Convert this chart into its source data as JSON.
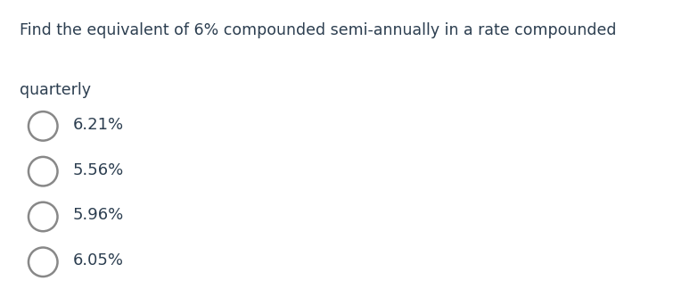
{
  "question_line1": "Find the equivalent of 6% compounded semi-annually in a rate compounded",
  "question_line2": "quarterly",
  "options": [
    "6.21%",
    "5.56%",
    "5.96%",
    "6.05%"
  ],
  "question_color": "#2c3e50",
  "option_color": "#2c3e50",
  "background_color": "#ffffff",
  "question_fontsize": 12.5,
  "option_fontsize": 13.0,
  "circle_color": "#888888",
  "circle_linewidth": 1.8,
  "fig_width": 7.55,
  "fig_height": 3.24,
  "dpi": 100
}
